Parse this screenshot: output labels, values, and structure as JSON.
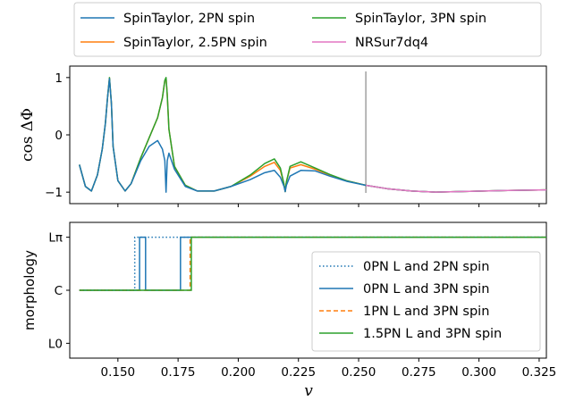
{
  "chart_data": [
    {
      "type": "line",
      "ylabel": "cos ΔΦ",
      "xlim": [
        0.13,
        0.328
      ],
      "ylim": [
        -1.2,
        1.2
      ],
      "yticks": [
        "−1",
        "0",
        "1"
      ],
      "yticks_values": [
        -1,
        0,
        1
      ],
      "vline_x": 0.253,
      "vline_color": "#a0a0a0",
      "legend": {
        "placement": "top-outside",
        "entries": [
          {
            "name": "SpinTaylor, 2PN spin",
            "color": "#1f77b4"
          },
          {
            "name": "SpinTaylor, 2.5PN spin",
            "color": "#ff7f0e"
          },
          {
            "name": "SpinTaylor, 3PN spin",
            "color": "#2ca02c"
          },
          {
            "name": "NRSur7dq4",
            "color": "#e377c2"
          }
        ]
      },
      "series": [
        {
          "name": "SpinTaylor, 2.5PN spin",
          "color": "#ff7f0e",
          "x": [
            0.134,
            0.1365,
            0.139,
            0.1415,
            0.1435,
            0.1448,
            0.1457,
            0.1465,
            0.1473,
            0.148,
            0.15,
            0.153,
            0.1555,
            0.1595,
            0.163,
            0.1665,
            0.1685,
            0.1695,
            0.17,
            0.1705,
            0.1712,
            0.1735,
            0.178,
            0.183,
            0.19,
            0.197,
            0.205,
            0.211,
            0.215,
            0.2175,
            0.219,
            0.2195,
            0.22,
            0.2215,
            0.226,
            0.232,
            0.238,
            0.245,
            0.253,
            0.262,
            0.272,
            0.282,
            0.292,
            0.302,
            0.312,
            0.328
          ],
          "y": [
            -0.52,
            -0.9,
            -0.98,
            -0.7,
            -0.25,
            0.2,
            0.65,
            0.99,
            0.55,
            -0.2,
            -0.8,
            -0.98,
            -0.85,
            -0.4,
            -0.05,
            0.3,
            0.65,
            0.95,
            0.99,
            0.7,
            0.1,
            -0.55,
            -0.88,
            -0.98,
            -0.98,
            -0.9,
            -0.72,
            -0.55,
            -0.48,
            -0.62,
            -0.86,
            -0.99,
            -0.82,
            -0.58,
            -0.52,
            -0.6,
            -0.7,
            -0.8,
            -0.88,
            -0.94,
            -0.98,
            -1.0,
            -0.99,
            -0.98,
            -0.97,
            -0.96
          ]
        },
        {
          "name": "SpinTaylor, 3PN spin",
          "color": "#2ca02c",
          "x": [
            0.134,
            0.1365,
            0.139,
            0.1415,
            0.1435,
            0.1448,
            0.1457,
            0.1465,
            0.1473,
            0.148,
            0.15,
            0.153,
            0.1555,
            0.1595,
            0.163,
            0.1665,
            0.1685,
            0.1695,
            0.17,
            0.1705,
            0.1712,
            0.1735,
            0.178,
            0.183,
            0.19,
            0.197,
            0.205,
            0.211,
            0.215,
            0.2175,
            0.219,
            0.2195,
            0.22,
            0.2215,
            0.226,
            0.232,
            0.238,
            0.245,
            0.253,
            0.262,
            0.272,
            0.282,
            0.292,
            0.302,
            0.312,
            0.328
          ],
          "y": [
            -0.52,
            -0.9,
            -0.98,
            -0.7,
            -0.25,
            0.2,
            0.65,
            1.0,
            0.55,
            -0.2,
            -0.8,
            -0.98,
            -0.85,
            -0.4,
            -0.05,
            0.3,
            0.65,
            0.95,
            1.0,
            0.7,
            0.1,
            -0.55,
            -0.88,
            -0.98,
            -0.98,
            -0.9,
            -0.7,
            -0.5,
            -0.42,
            -0.58,
            -0.86,
            -0.99,
            -0.82,
            -0.55,
            -0.47,
            -0.58,
            -0.69,
            -0.8,
            -0.88,
            -0.94,
            -0.98,
            -1.0,
            -0.99,
            -0.98,
            -0.97,
            -0.96
          ]
        },
        {
          "name": "SpinTaylor, 2PN spin",
          "color": "#1f77b4",
          "x": [
            0.134,
            0.1365,
            0.139,
            0.1415,
            0.1435,
            0.1448,
            0.1457,
            0.1465,
            0.1473,
            0.148,
            0.15,
            0.153,
            0.1555,
            0.1595,
            0.163,
            0.1665,
            0.1685,
            0.1695,
            0.17,
            0.1705,
            0.1712,
            0.1735,
            0.178,
            0.183,
            0.19,
            0.197,
            0.205,
            0.211,
            0.215,
            0.2175,
            0.219,
            0.2195,
            0.22,
            0.2215,
            0.226,
            0.232,
            0.238,
            0.245,
            0.253,
            0.262,
            0.272,
            0.282,
            0.292,
            0.302,
            0.312,
            0.328
          ],
          "y": [
            -0.52,
            -0.9,
            -0.98,
            -0.7,
            -0.25,
            0.2,
            0.65,
            0.98,
            0.55,
            -0.2,
            -0.8,
            -0.98,
            -0.85,
            -0.45,
            -0.2,
            -0.1,
            -0.25,
            -0.45,
            -1.0,
            -0.45,
            -0.32,
            -0.6,
            -0.9,
            -0.98,
            -0.98,
            -0.9,
            -0.78,
            -0.66,
            -0.62,
            -0.74,
            -0.9,
            -0.99,
            -0.88,
            -0.72,
            -0.62,
            -0.63,
            -0.72,
            -0.81,
            -0.88,
            -0.94,
            -0.98,
            -1.0,
            -0.99,
            -0.98,
            -0.97,
            -0.96
          ]
        },
        {
          "name": "NRSur7dq4",
          "color": "#e377c2",
          "x": [
            0.253,
            0.262,
            0.272,
            0.282,
            0.292,
            0.302,
            0.312,
            0.328
          ],
          "y": [
            -0.88,
            -0.94,
            -0.98,
            -1.0,
            -0.99,
            -0.98,
            -0.97,
            -0.96
          ]
        }
      ]
    },
    {
      "type": "line",
      "xlabel": "v",
      "ylabel": "morphology",
      "xlim": [
        0.13,
        0.328
      ],
      "xticks": [
        "0.150",
        "0.175",
        "0.200",
        "0.225",
        "0.250",
        "0.275",
        "0.300",
        "0.325"
      ],
      "xticks_values": [
        0.15,
        0.175,
        0.2,
        0.225,
        0.25,
        0.275,
        0.3,
        0.325
      ],
      "yticks": [
        "L0",
        "C",
        "Lπ"
      ],
      "yticks_values": [
        0,
        1,
        2
      ],
      "ylim": [
        -0.28,
        2.28
      ],
      "legend": {
        "placement": "lower-right",
        "entries": [
          {
            "name": "0PN L and 2PN spin",
            "color": "#1f77b4",
            "style": "dotted"
          },
          {
            "name": "0PN L and 3PN spin",
            "color": "#1f77b4",
            "style": "solid"
          },
          {
            "name": "1PN L and 3PN spin",
            "color": "#ff7f0e",
            "style": "dashed"
          },
          {
            "name": "1.5PN L and 3PN spin",
            "color": "#2ca02c",
            "style": "solid"
          }
        ]
      },
      "series": [
        {
          "name": "0PN L and 2PN spin",
          "color": "#1f77b4",
          "style": "dotted",
          "x": [
            0.134,
            0.157,
            0.157,
            0.328
          ],
          "y": [
            1,
            1,
            2,
            2
          ]
        },
        {
          "name": "0PN L and 3PN spin",
          "color": "#1f77b4",
          "style": "solid",
          "x": [
            0.134,
            0.159,
            0.159,
            0.1615,
            0.1615,
            0.176,
            0.176,
            0.328
          ],
          "y": [
            1,
            1,
            2,
            2,
            1,
            1,
            2,
            2
          ]
        },
        {
          "name": "1PN L and 3PN spin",
          "color": "#ff7f0e",
          "style": "dashed",
          "x": [
            0.134,
            0.18,
            0.18,
            0.328
          ],
          "y": [
            1,
            1,
            2,
            2
          ]
        },
        {
          "name": "1.5PN L and 3PN spin",
          "color": "#2ca02c",
          "style": "solid",
          "x": [
            0.134,
            0.1805,
            0.1805,
            0.328
          ],
          "y": [
            1,
            1,
            2,
            2
          ]
        }
      ]
    }
  ]
}
